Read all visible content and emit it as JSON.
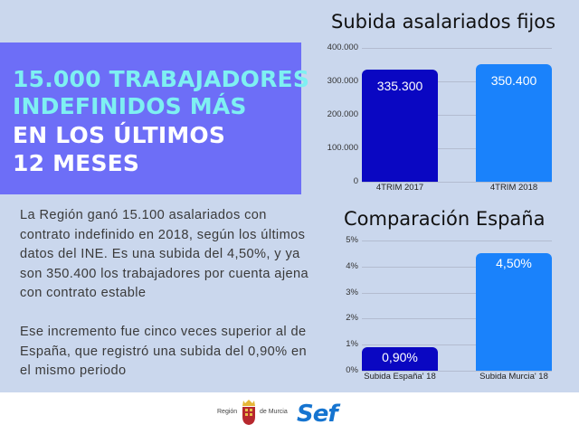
{
  "headline": {
    "line1": "15.000 TRABAJADORES",
    "line2": "INDEFINIDOS MÁS",
    "line3": "EN LOS ÚLTIMOS",
    "line4": "12 MESES"
  },
  "body": {
    "paragraph1": "La Región ganó 15.100 asalariados con contrato indefinido en 2018, según los últimos datos del INE. Es una subida del 4,50%, y ya son 350.400 los trabajadores por cuenta ajena con contrato estable",
    "paragraph2": "Ese incremento fue cinco veces superior al de España, que registró una subida del 0,90% en el mismo periodo"
  },
  "colors": {
    "background": "#cad7ed",
    "banner": "#6d6ef7",
    "headline_cyan": "#7ef0f2",
    "bar_dark": "#0a07c2",
    "bar_light": "#1a82fb",
    "sef_blue": "#1574d0"
  },
  "footer": {
    "region_left": "Región",
    "region_right": "de Murcia",
    "sef_logo": "Sef",
    "icons": [
      "coat-of-arms-icon"
    ]
  },
  "chart_data": [
    {
      "type": "bar",
      "title": "Subida asalariados fijos",
      "categories": [
        "4TRIM 2017",
        "4TRIM 2018"
      ],
      "values": [
        335300,
        350400
      ],
      "value_labels": [
        "335.300",
        "350.400"
      ],
      "yticks": [
        "0",
        "100.000",
        "200.000",
        "300.000",
        "400.000"
      ],
      "ylim": [
        0,
        400000
      ],
      "xlabel": "",
      "ylabel": "",
      "grid": true,
      "legend": "none",
      "colors": [
        "#0a07c2",
        "#1a82fb"
      ]
    },
    {
      "type": "bar",
      "title": "Comparación España",
      "categories": [
        "Subida España' 18",
        "Subida Murcia' 18"
      ],
      "values": [
        0.9,
        4.5
      ],
      "value_labels": [
        "0,90%",
        "4,50%"
      ],
      "yticks": [
        "0%",
        "1%",
        "2%",
        "3%",
        "4%",
        "5%"
      ],
      "ylim": [
        0,
        5
      ],
      "xlabel": "",
      "ylabel": "",
      "grid": true,
      "legend": "none",
      "colors": [
        "#0a07c2",
        "#1a82fb"
      ]
    }
  ]
}
